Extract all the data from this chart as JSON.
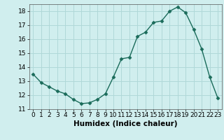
{
  "x": [
    0,
    1,
    2,
    3,
    4,
    5,
    6,
    7,
    8,
    9,
    10,
    11,
    12,
    13,
    14,
    15,
    16,
    17,
    18,
    19,
    20,
    21,
    22,
    23
  ],
  "y": [
    13.5,
    12.9,
    12.6,
    12.3,
    12.1,
    11.7,
    11.4,
    11.45,
    11.7,
    12.1,
    13.3,
    14.6,
    14.7,
    16.2,
    16.5,
    17.2,
    17.3,
    18.0,
    18.3,
    17.9,
    16.7,
    15.3,
    13.3,
    11.8
  ],
  "line_color": "#1a6b5a",
  "marker": "D",
  "markersize": 2.5,
  "linewidth": 1.0,
  "background_color": "#d0eeee",
  "grid_color": "#b0d8d8",
  "xlabel": "Humidex (Indice chaleur)",
  "xlim": [
    -0.5,
    23.5
  ],
  "ylim": [
    11,
    18.5
  ],
  "yticks": [
    11,
    12,
    13,
    14,
    15,
    16,
    17,
    18
  ],
  "xticks": [
    0,
    1,
    2,
    3,
    4,
    5,
    6,
    7,
    8,
    9,
    10,
    11,
    12,
    13,
    14,
    15,
    16,
    17,
    18,
    19,
    20,
    21,
    22,
    23
  ],
  "xlabel_fontsize": 7.5,
  "tick_fontsize": 6.5
}
